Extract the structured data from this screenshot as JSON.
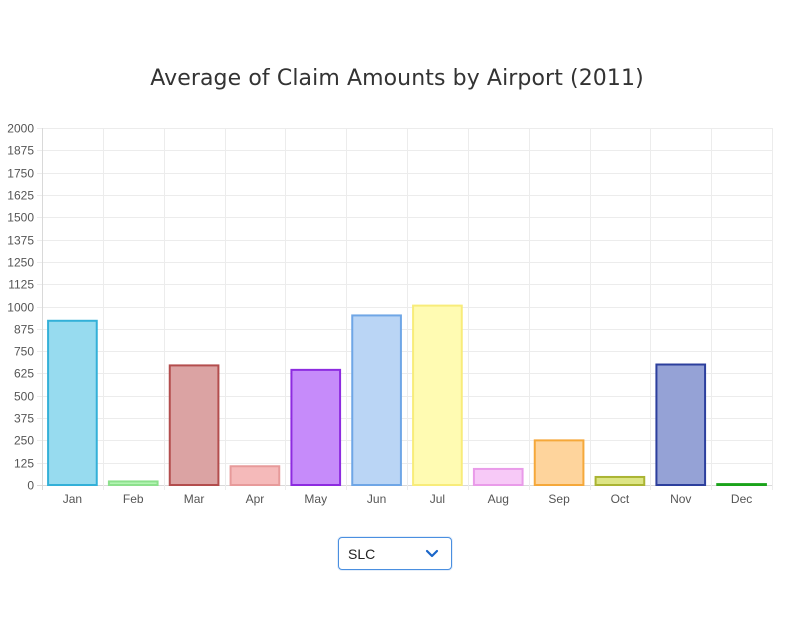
{
  "chart_data": {
    "type": "bar",
    "title": "Average of Claim Amounts by Airport (2011)",
    "categories": [
      "Jan",
      "Feb",
      "Mar",
      "Apr",
      "May",
      "Jun",
      "Jul",
      "Aug",
      "Sep",
      "Oct",
      "Nov",
      "Dec"
    ],
    "series": [
      {
        "values": [
          920,
          20,
          670,
          105,
          645,
          950,
          1005,
          90,
          250,
          45,
          675,
          5
        ]
      }
    ],
    "ylim": [
      0,
      2000
    ],
    "yticks": [
      0,
      125,
      250,
      375,
      500,
      625,
      750,
      875,
      1000,
      1125,
      1250,
      1375,
      1500,
      1625,
      1750,
      1875,
      2000
    ],
    "grid": true,
    "bar_fills": [
      "#97dbef",
      "#b4f4b4",
      "#dba3a3",
      "#f5baba",
      "#c68bfa",
      "#bad5f5",
      "#fffbb2",
      "#f7c9f7",
      "#fed49c",
      "#dde585",
      "#95a2d6",
      "#66c266"
    ],
    "bar_borders": [
      "#33b0d8",
      "#8ce08c",
      "#b34d4d",
      "#e79a9a",
      "#8d2be0",
      "#6fa6e6",
      "#f8ec7a",
      "#e99be9",
      "#f5a83a",
      "#aab433",
      "#2c3f9d",
      "#1aa31a"
    ]
  },
  "selector": {
    "selected": "SLC"
  }
}
